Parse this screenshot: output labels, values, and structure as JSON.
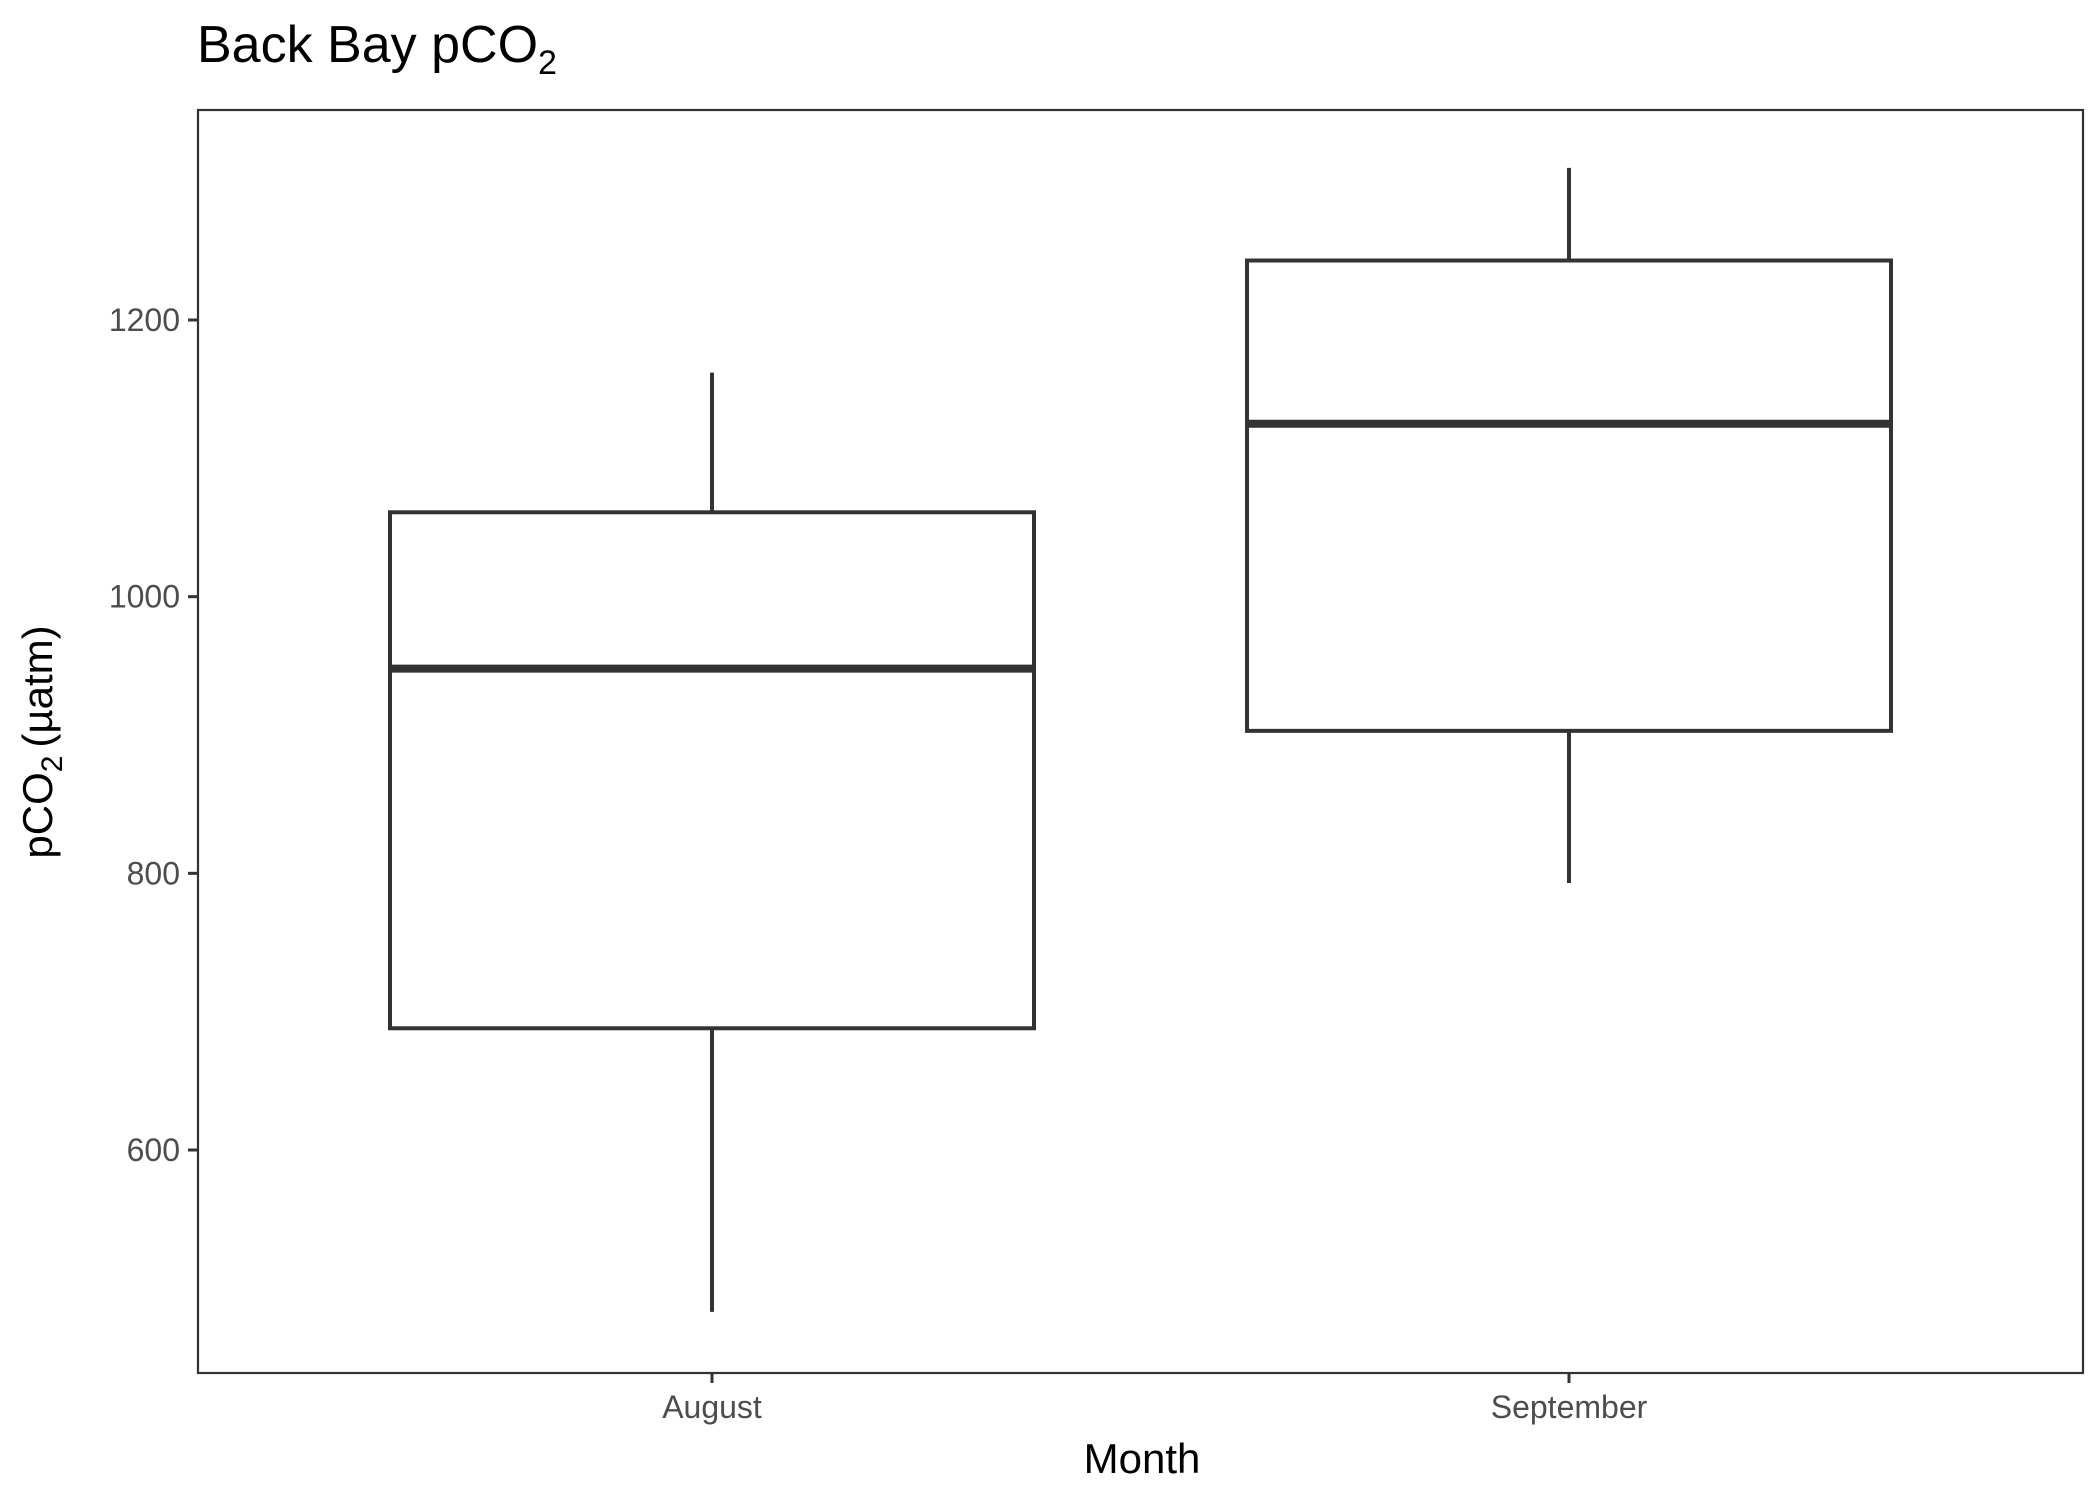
{
  "chart_data": {
    "type": "boxplot",
    "title": "Back Bay pCO",
    "title_subscript": "2",
    "xlabel": "Month",
    "ylabel_main": "pCO",
    "ylabel_subscript": "2",
    "ylabel_unit": "(µatm)",
    "categories": [
      "August",
      "September"
    ],
    "boxes": [
      {
        "category": "August",
        "whisker_low": 483,
        "q1": 688,
        "median": 948,
        "q3": 1061,
        "whisker_high": 1162
      },
      {
        "category": "September",
        "whisker_low": 793,
        "q1": 903,
        "median": 1125,
        "q3": 1243,
        "whisker_high": 1310
      }
    ],
    "y_ticks": [
      600,
      800,
      1000,
      1200
    ],
    "y_tick_labels": [
      "600",
      "800",
      "1000",
      "1200"
    ],
    "ylim": [
      440,
      1350
    ],
    "grid": false,
    "legend": "none",
    "colors": {
      "line": "#333333",
      "fill": "#ffffff"
    }
  }
}
